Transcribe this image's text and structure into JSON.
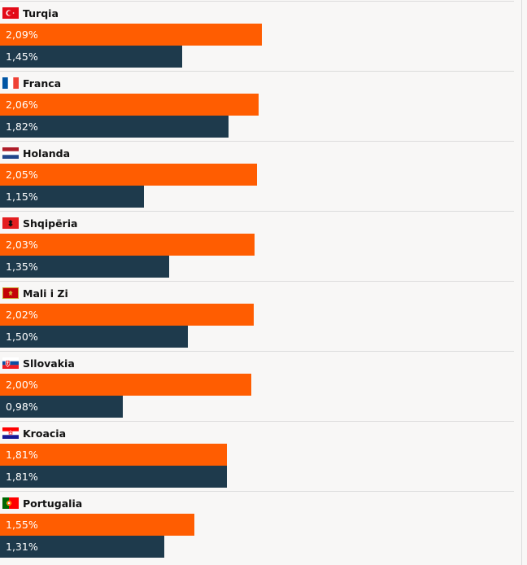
{
  "chart_data": {
    "type": "bar",
    "orientation": "horizontal",
    "title": "",
    "xlabel": "",
    "ylabel": "",
    "grid": false,
    "legend": "none",
    "xlim": [
      0,
      4.2
    ],
    "categories": [
      "Turqia",
      "Franca",
      "Holanda",
      "Shqipëria",
      "Mali i Zi",
      "Sllovakia",
      "Kroacia",
      "Portugalia"
    ],
    "flags": [
      "turkey-flag",
      "france-flag",
      "netherlands-flag",
      "albania-flag",
      "montenegro-flag",
      "slovakia-flag",
      "croatia-flag",
      "portugal-flag"
    ],
    "series": [
      {
        "color": "#ff5d01",
        "values": [
          2.09,
          2.06,
          2.05,
          2.03,
          2.02,
          2.0,
          1.81,
          1.55
        ],
        "labels": [
          "2,09%",
          "2,06%",
          "2,05%",
          "2,03%",
          "2,02%",
          "2,00%",
          "1,81%",
          "1,55%"
        ]
      },
      {
        "color": "#1e3a4c",
        "values": [
          1.45,
          1.82,
          1.15,
          1.35,
          1.5,
          0.98,
          1.81,
          1.31
        ],
        "labels": [
          "1,45%",
          "1,82%",
          "1,15%",
          "1,35%",
          "1,50%",
          "0,98%",
          "1,81%",
          "1,31%"
        ]
      }
    ]
  }
}
